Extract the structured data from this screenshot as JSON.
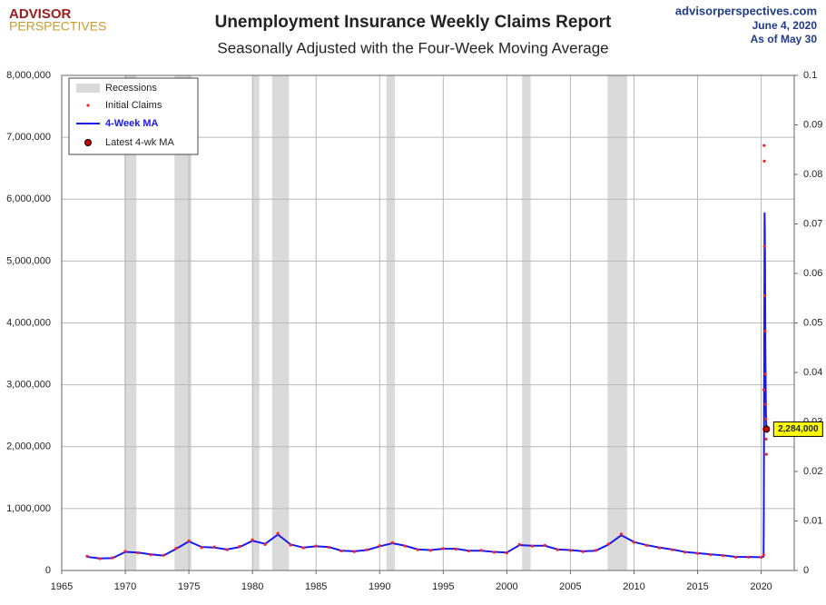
{
  "chart_data": {
    "type": "line",
    "title": "Unemployment Insurance Weekly Claims Report",
    "subtitle": "Seasonally Adjusted with the Four-Week Moving Average",
    "logo": [
      "ADVISOR",
      "PERSPECTIVES"
    ],
    "source": [
      "advisorperspectives.com",
      "June 4, 2020",
      "As of May 30"
    ],
    "recessions_label": "Recessions",
    "recessions": [
      [
        1969.92,
        1970.87
      ],
      [
        1973.87,
        1975.2
      ],
      [
        1980.0,
        1980.54
      ],
      [
        1981.54,
        1982.87
      ],
      [
        1990.54,
        1991.2
      ],
      [
        2001.2,
        2001.87
      ],
      [
        2007.92,
        2009.46
      ]
    ],
    "x": [
      1967,
      1968,
      1969,
      1970,
      1971,
      1972,
      1973,
      1974,
      1975,
      1976,
      1977,
      1978,
      1979,
      1980,
      1981,
      1982,
      1983,
      1984,
      1985,
      1986,
      1987,
      1988,
      1989,
      1990,
      1991,
      1992,
      1993,
      1994,
      1995,
      1996,
      1997,
      1998,
      1999,
      2000,
      2001,
      2002,
      2003,
      2004,
      2005,
      2006,
      2007,
      2008,
      2009,
      2010,
      2011,
      2012,
      2013,
      2014,
      2015,
      2016,
      2017,
      2018,
      2019,
      2020.0,
      2020.19,
      2020.21,
      2020.23,
      2020.25,
      2020.27,
      2020.29,
      2020.31,
      2020.33,
      2020.35,
      2020.37,
      2020.39,
      2020.41
    ],
    "series": [
      {
        "name": "Initial Claims",
        "color": "#ff2020",
        "values": [
          230000,
          190000,
          205000,
          310000,
          285000,
          255000,
          245000,
          360000,
          480000,
          370000,
          380000,
          335000,
          390000,
          495000,
          420000,
          600000,
          410000,
          365000,
          395000,
          375000,
          315000,
          305000,
          335000,
          400000,
          450000,
          395000,
          335000,
          325000,
          355000,
          345000,
          315000,
          325000,
          295000,
          285000,
          420000,
          395000,
          405000,
          335000,
          325000,
          305000,
          325000,
          430000,
          590000,
          455000,
          405000,
          365000,
          335000,
          295000,
          275000,
          255000,
          240000,
          215000,
          215000,
          212000,
          251000,
          2920000,
          6867000,
          6615000,
          5237000,
          4442000,
          3867000,
          3176000,
          2687000,
          2446000,
          2123000,
          1877000
        ]
      },
      {
        "name": "4-Week MA",
        "color": "#1a1aee",
        "values": [
          220000,
          195000,
          200000,
          300000,
          290000,
          260000,
          240000,
          350000,
          470000,
          380000,
          370000,
          340000,
          380000,
          480000,
          430000,
          580000,
          420000,
          370000,
          390000,
          380000,
          320000,
          310000,
          330000,
          390000,
          440000,
          400000,
          340000,
          330000,
          350000,
          350000,
          320000,
          320000,
          300000,
          290000,
          410000,
          400000,
          400000,
          340000,
          330000,
          310000,
          320000,
          420000,
          570000,
          460000,
          410000,
          370000,
          340000,
          300000,
          280000,
          260000,
          245000,
          220000,
          218000,
          215000,
          225000,
          998000,
          2618000,
          4265000,
          5786000,
          5505000,
          4787000,
          3613000,
          3172000,
          2610000,
          2414000,
          2284000
        ]
      }
    ],
    "latest": {
      "name": "Latest 4-wk MA",
      "color": "#cc0000",
      "x": [
        2020.41
      ],
      "values": [
        2284000
      ],
      "value_labels": [
        "2,284,000"
      ]
    },
    "xlim": [
      1965,
      2022.6
    ],
    "xticks": [
      1965,
      1970,
      1975,
      1980,
      1985,
      1990,
      1995,
      2000,
      2005,
      2010,
      2015,
      2020
    ],
    "ylim": [
      0,
      8000000
    ],
    "yticks": [
      0,
      {
        "value": 1000000,
        "label": "1,000,000"
      },
      {
        "value": 2000000,
        "label": "2,000,000"
      },
      {
        "value": 3000000,
        "label": "3,000,000"
      },
      {
        "value": 4000000,
        "label": "4,000,000"
      },
      {
        "value": 5000000,
        "label": "5,000,000"
      },
      {
        "value": 6000000,
        "label": "6,000,000"
      },
      {
        "value": 7000000,
        "label": "7,000,000"
      },
      {
        "value": 8000000,
        "label": "8,000,000"
      }
    ],
    "y2lim": [
      0,
      0.1
    ],
    "y2ticks": [
      0,
      0.01,
      0.02,
      0.03,
      0.04,
      0.05,
      0.06,
      0.07,
      0.08,
      0.09,
      0.1
    ],
    "grid": true
  }
}
